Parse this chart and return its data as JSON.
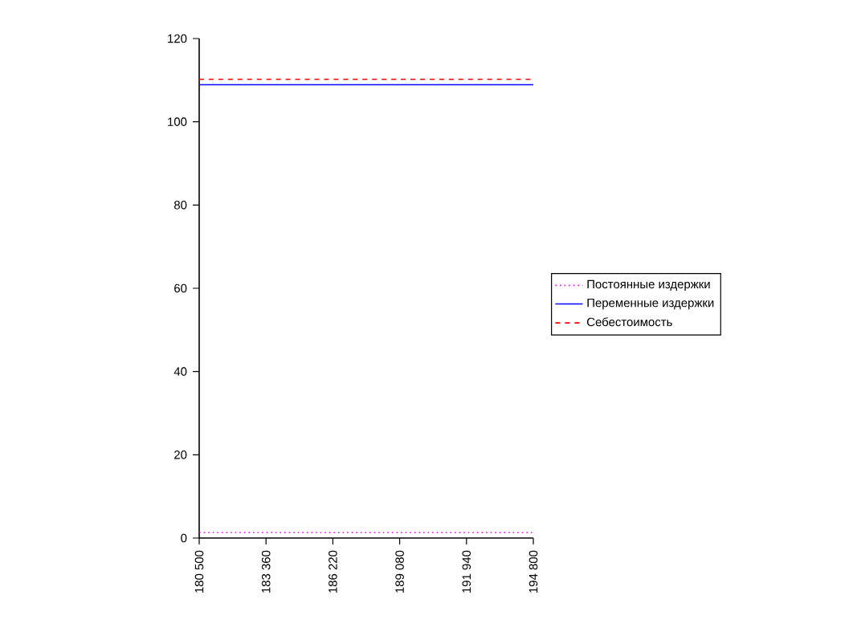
{
  "chart_data": {
    "type": "line",
    "categories": [
      "180 500",
      "183 360",
      "186 220",
      "189 080",
      "191 940",
      "194 800"
    ],
    "ylim": [
      0,
      120
    ],
    "yticks": [
      0,
      20,
      40,
      60,
      80,
      100,
      120
    ],
    "legend": "right",
    "series": [
      {
        "name": "Постоянные издержки",
        "color": "#ff00ff",
        "line_style": "dotted",
        "values": [
          1.3,
          1.3,
          1.3,
          1.3,
          1.3,
          1.3
        ]
      },
      {
        "name": "Переменные издержки",
        "color": "#0000ff",
        "line_style": "solid",
        "values": [
          108.9,
          108.9,
          108.9,
          108.9,
          108.9,
          108.9
        ]
      },
      {
        "name": "Себестоимость",
        "color": "#ff0000",
        "line_style": "dashed",
        "values": [
          110.2,
          110.2,
          110.2,
          110.2,
          110.2,
          110.2
        ]
      }
    ]
  }
}
